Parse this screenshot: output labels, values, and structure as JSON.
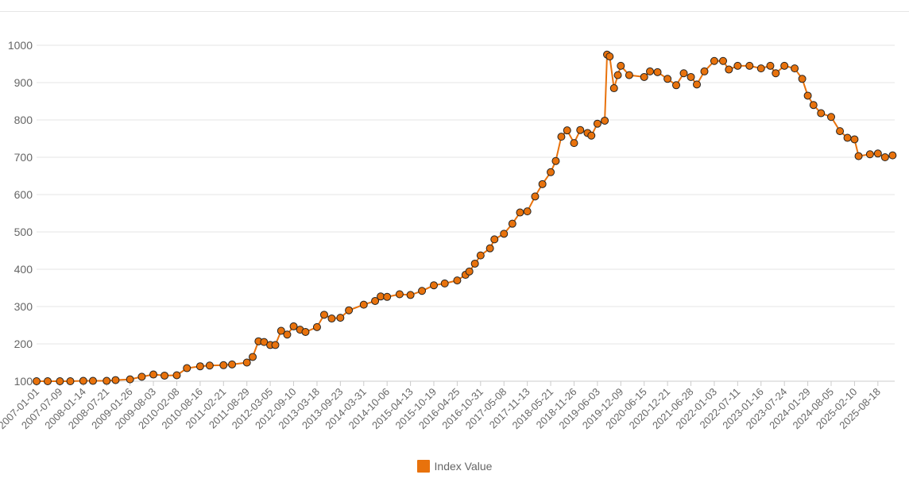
{
  "chart_data": {
    "type": "line",
    "title": "",
    "xlabel": "",
    "ylabel": "",
    "ylim": [
      100,
      1000
    ],
    "yticks": [
      100,
      200,
      300,
      400,
      500,
      600,
      700,
      800,
      900,
      1000
    ],
    "xticks": [
      "2007-01-01",
      "2007-07-09",
      "2008-01-14",
      "2008-07-21",
      "2009-01-26",
      "2009-08-03",
      "2010-02-08",
      "2010-08-16",
      "2011-02-21",
      "2011-08-29",
      "2012-03-05",
      "2012-09-10",
      "2013-03-18",
      "2013-09-23",
      "2014-03-31",
      "2014-10-06",
      "2015-04-13",
      "2015-10-19",
      "2016-04-25",
      "2016-10-31",
      "2017-05-08",
      "2017-11-13",
      "2018-05-21",
      "2018-11-26",
      "2019-06-03",
      "2019-12-09",
      "2020-06-15",
      "2020-12-21",
      "2021-06-28",
      "2022-01-03",
      "2022-07-11",
      "2023-01-16",
      "2023-07-24",
      "2024-01-29",
      "2024-08-05",
      "2025-02-10",
      "2025-08-18"
    ],
    "grid": true,
    "legend_position": "bottom",
    "series": [
      {
        "name": "Index Value",
        "color": "#e8720c",
        "points": [
          [
            "2007-01-01",
            100
          ],
          [
            "2007-04-01",
            100
          ],
          [
            "2007-07-09",
            100
          ],
          [
            "2007-10-01",
            100
          ],
          [
            "2008-01-14",
            101
          ],
          [
            "2008-04-01",
            101
          ],
          [
            "2008-07-21",
            101
          ],
          [
            "2008-10-01",
            103
          ],
          [
            "2009-01-26",
            105
          ],
          [
            "2009-05-01",
            112
          ],
          [
            "2009-08-03",
            118
          ],
          [
            "2009-11-01",
            115
          ],
          [
            "2010-02-08",
            116
          ],
          [
            "2010-05-01",
            135
          ],
          [
            "2010-08-16",
            140
          ],
          [
            "2010-11-01",
            142
          ],
          [
            "2011-02-21",
            143
          ],
          [
            "2011-05-01",
            145
          ],
          [
            "2011-08-29",
            150
          ],
          [
            "2011-10-15",
            165
          ],
          [
            "2011-12-01",
            207
          ],
          [
            "2012-01-15",
            205
          ],
          [
            "2012-03-05",
            197
          ],
          [
            "2012-04-15",
            197
          ],
          [
            "2012-06-01",
            235
          ],
          [
            "2012-07-20",
            225
          ],
          [
            "2012-09-10",
            247
          ],
          [
            "2012-11-01",
            238
          ],
          [
            "2012-12-15",
            232
          ],
          [
            "2013-03-18",
            245
          ],
          [
            "2013-05-15",
            278
          ],
          [
            "2013-07-15",
            268
          ],
          [
            "2013-09-23",
            270
          ],
          [
            "2013-12-01",
            290
          ],
          [
            "2014-03-31",
            305
          ],
          [
            "2014-07-01",
            315
          ],
          [
            "2014-08-15",
            327
          ],
          [
            "2014-10-06",
            326
          ],
          [
            "2015-01-15",
            333
          ],
          [
            "2015-04-13",
            331
          ],
          [
            "2015-07-15",
            342
          ],
          [
            "2015-10-19",
            357
          ],
          [
            "2016-01-15",
            362
          ],
          [
            "2016-04-25",
            370
          ],
          [
            "2016-07-01",
            385
          ],
          [
            "2016-08-01",
            394
          ],
          [
            "2016-09-15",
            415
          ],
          [
            "2016-10-31",
            437
          ],
          [
            "2017-01-15",
            456
          ],
          [
            "2017-02-20",
            480
          ],
          [
            "2017-05-08",
            495
          ],
          [
            "2017-07-15",
            522
          ],
          [
            "2017-09-15",
            552
          ],
          [
            "2017-11-13",
            555
          ],
          [
            "2018-01-15",
            595
          ],
          [
            "2018-03-15",
            628
          ],
          [
            "2018-05-21",
            660
          ],
          [
            "2018-07-01",
            690
          ],
          [
            "2018-08-15",
            755
          ],
          [
            "2018-10-01",
            772
          ],
          [
            "2018-11-26",
            738
          ],
          [
            "2019-01-15",
            773
          ],
          [
            "2019-03-15",
            765
          ],
          [
            "2019-04-15",
            758
          ],
          [
            "2019-06-03",
            790
          ],
          [
            "2019-08-01",
            798
          ],
          [
            "2019-08-20",
            975
          ],
          [
            "2019-09-10",
            970
          ],
          [
            "2019-10-15",
            885
          ],
          [
            "2019-11-15",
            920
          ],
          [
            "2019-12-09",
            945
          ],
          [
            "2020-02-15",
            920
          ],
          [
            "2020-06-15",
            915
          ],
          [
            "2020-08-01",
            930
          ],
          [
            "2020-10-01",
            928
          ],
          [
            "2020-12-21",
            910
          ],
          [
            "2021-03-01",
            893
          ],
          [
            "2021-05-01",
            925
          ],
          [
            "2021-06-28",
            915
          ],
          [
            "2021-08-15",
            895
          ],
          [
            "2021-10-15",
            930
          ],
          [
            "2022-01-03",
            958
          ],
          [
            "2022-03-15",
            958
          ],
          [
            "2022-05-01",
            935
          ],
          [
            "2022-07-11",
            945
          ],
          [
            "2022-10-15",
            945
          ],
          [
            "2023-01-16",
            938
          ],
          [
            "2023-04-01",
            945
          ],
          [
            "2023-05-15",
            925
          ],
          [
            "2023-07-24",
            945
          ],
          [
            "2023-10-15",
            938
          ],
          [
            "2023-12-15",
            910
          ],
          [
            "2024-01-29",
            865
          ],
          [
            "2024-03-15",
            840
          ],
          [
            "2024-05-15",
            818
          ],
          [
            "2024-08-05",
            808
          ],
          [
            "2024-10-15",
            770
          ],
          [
            "2024-12-15",
            752
          ],
          [
            "2025-02-10",
            748
          ],
          [
            "2025-03-15",
            703
          ],
          [
            "2025-06-15",
            708
          ],
          [
            "2025-08-18",
            710
          ],
          [
            "2025-10-15",
            700
          ],
          [
            "2025-12-15",
            705
          ]
        ]
      }
    ]
  }
}
